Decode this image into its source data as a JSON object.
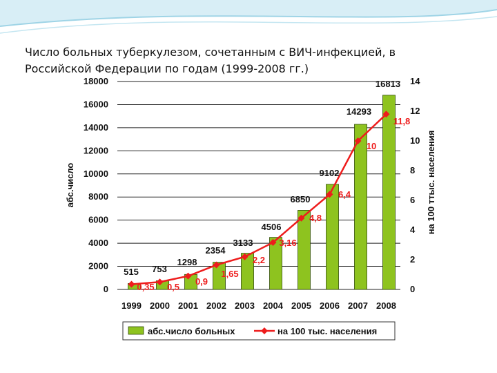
{
  "slide": {
    "title": "Число больных туберкулезом, сочетанным с ВИЧ-инфекцией, в Российской Федерации по годам (1999-2008 гг.)"
  },
  "colors": {
    "bar": "#8ec31f",
    "bar_edge": "#2f4a06",
    "line": "#ee1c1c",
    "grid": "#222222",
    "deco": "#9fd4e6"
  },
  "chart_data": {
    "type": "bar",
    "categories": [
      "1999",
      "2000",
      "2001",
      "2002",
      "2003",
      "2004",
      "2005",
      "2006",
      "2007",
      "2008"
    ],
    "series": [
      {
        "name": "абс.число больных",
        "axis": "left",
        "type": "bar",
        "values": [
          515,
          753,
          1298,
          2354,
          3133,
          4506,
          6850,
          9102,
          14293,
          16813
        ],
        "labels": [
          "515",
          "753",
          "1298",
          "2354",
          "3133",
          "4506",
          "6850",
          "9102",
          "14293",
          "16813"
        ]
      },
      {
        "name": "на 100 тыс. населения",
        "axis": "right",
        "type": "line",
        "values": [
          0.35,
          0.5,
          0.9,
          1.65,
          2.2,
          3.16,
          4.8,
          6.4,
          10,
          11.8
        ],
        "labels": [
          "0,35",
          "0,5",
          "0,9",
          "1,65",
          "2,2",
          "3,16",
          "4,8",
          "6,4",
          "10",
          "11,8"
        ]
      }
    ],
    "ylabel": "абс.число",
    "y2label": "на 100 ттыс. населения",
    "ylim": [
      0,
      18000
    ],
    "y2lim": [
      0,
      14
    ],
    "yticks": [
      "0",
      "2000",
      "4000",
      "6000",
      "8000",
      "10000",
      "12000",
      "14000",
      "16000",
      "18000"
    ],
    "y2ticks": [
      "0",
      "2",
      "4",
      "6",
      "8",
      "10",
      "12",
      "14"
    ],
    "grid": true,
    "legend": "bottom"
  }
}
